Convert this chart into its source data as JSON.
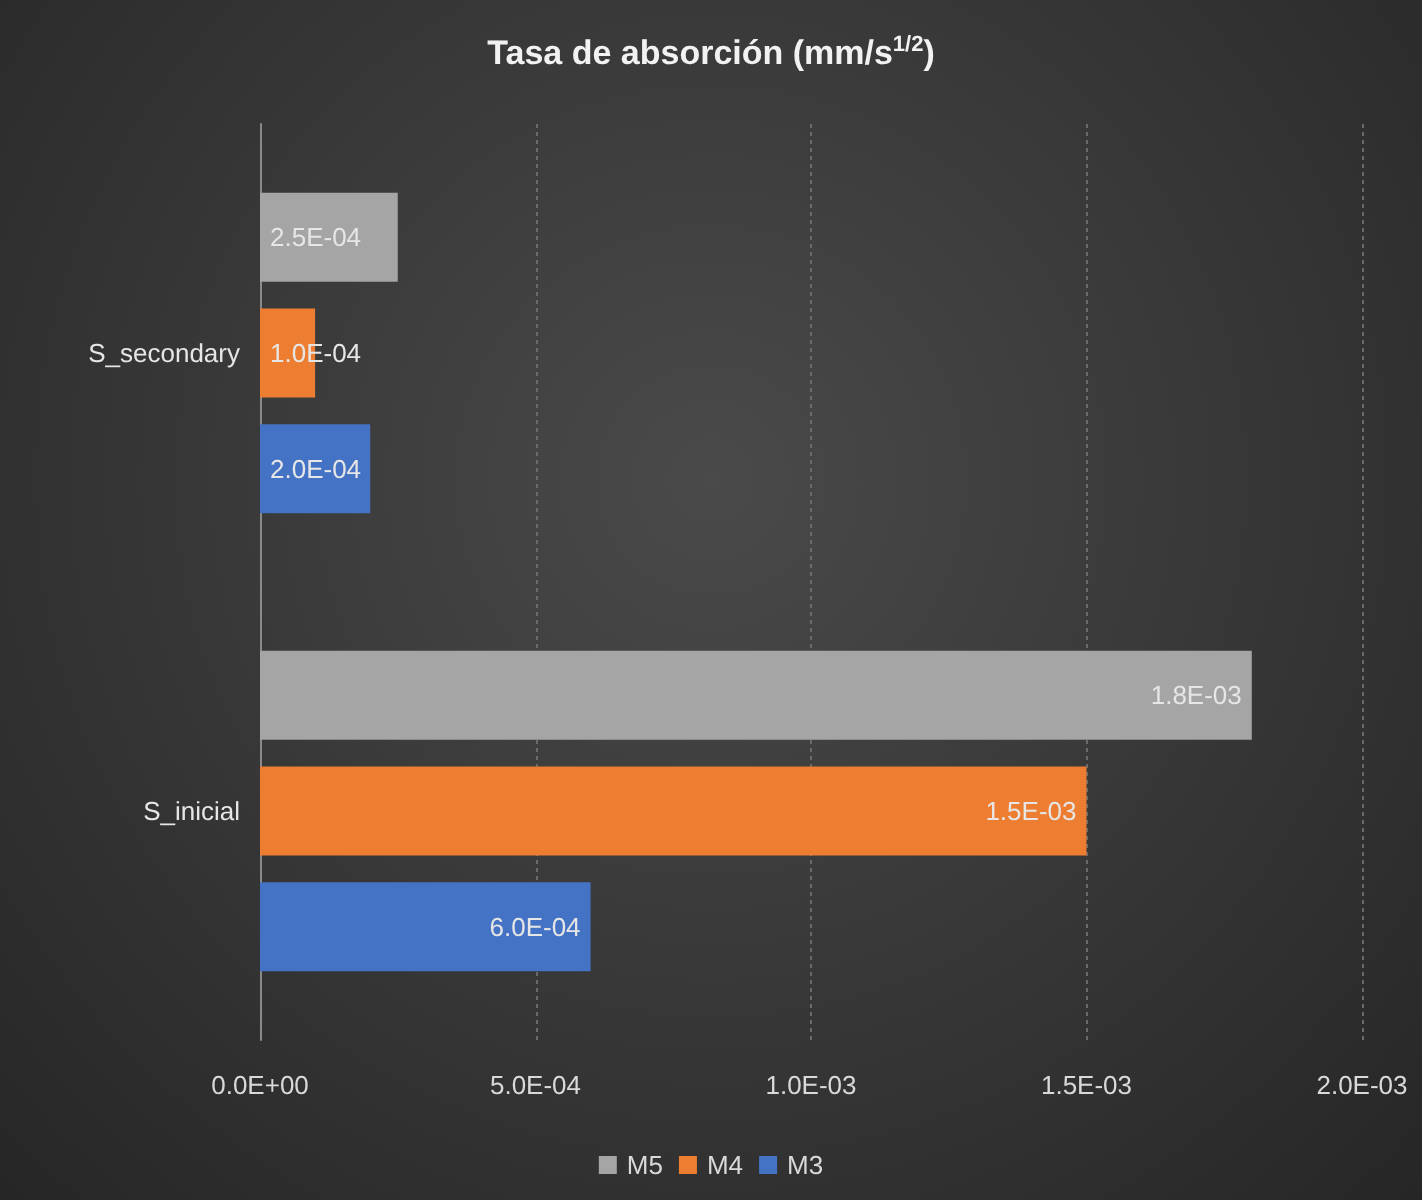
{
  "chart_data": {
    "type": "bar",
    "orientation": "horizontal",
    "title": "Tasa de absorción (mm/s$^{1/2}$)",
    "categories": [
      "S_secondary",
      "S_inicial"
    ],
    "series": [
      {
        "name": "M5",
        "color": "#a5a5a5",
        "values": [
          0.00025,
          0.0018
        ],
        "value_labels": [
          "2.5E-04",
          "1.8E-03"
        ]
      },
      {
        "name": "M4",
        "color": "#ed7d31",
        "values": [
          0.0001,
          0.0015
        ],
        "value_labels": [
          "1.0E-04",
          "1.5E-03"
        ]
      },
      {
        "name": "M3",
        "color": "#4472c4",
        "values": [
          0.0002,
          0.0006
        ],
        "value_labels": [
          "2.0E-04",
          "6.0E-04"
        ]
      }
    ],
    "xlim": [
      0,
      0.002
    ],
    "xticks": [
      {
        "value": 0,
        "label": "0.0E+00"
      },
      {
        "value": 0.0005,
        "label": "5.0E-04"
      },
      {
        "value": 0.001,
        "label": "1.0E-03"
      },
      {
        "value": 0.0015,
        "label": "1.5E-03"
      },
      {
        "value": 0.002,
        "label": "2.0E-03"
      }
    ],
    "grid": "x",
    "legend": "bottom"
  }
}
